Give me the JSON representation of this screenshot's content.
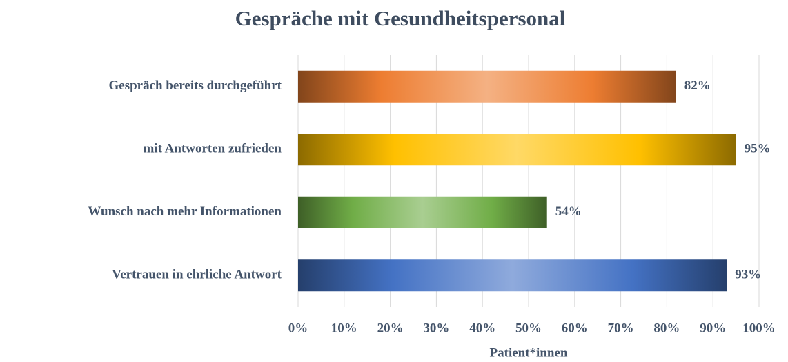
{
  "chart_data": {
    "type": "bar",
    "orientation": "horizontal",
    "title": "Gespräche mit Gesundheitspersonal",
    "x_label": "Patient*innen",
    "categories": [
      "Gespräch bereits durchgeführt",
      "mit Antworten zufrieden",
      "Wunsch nach mehr Informationen",
      "Vertrauen in ehrliche Antwort"
    ],
    "values": [
      82,
      95,
      54,
      93
    ],
    "value_labels": [
      "82%",
      "95%",
      "54%",
      "93%"
    ],
    "colors": [
      "#ed7d31",
      "#ffc000",
      "#70ad47",
      "#4472c4"
    ],
    "xlim": [
      0,
      100
    ],
    "xticks": [
      {
        "value": 0,
        "label": "0%"
      },
      {
        "value": 10,
        "label": "10%"
      },
      {
        "value": 20,
        "label": "20%"
      },
      {
        "value": 30,
        "label": "30%"
      },
      {
        "value": 40,
        "label": "40%"
      },
      {
        "value": 50,
        "label": "50%"
      },
      {
        "value": 60,
        "label": "60%"
      },
      {
        "value": 70,
        "label": "70%"
      },
      {
        "value": 80,
        "label": "80%"
      },
      {
        "value": 90,
        "label": "90%"
      },
      {
        "value": 100,
        "label": "100%"
      }
    ],
    "grid": true
  }
}
